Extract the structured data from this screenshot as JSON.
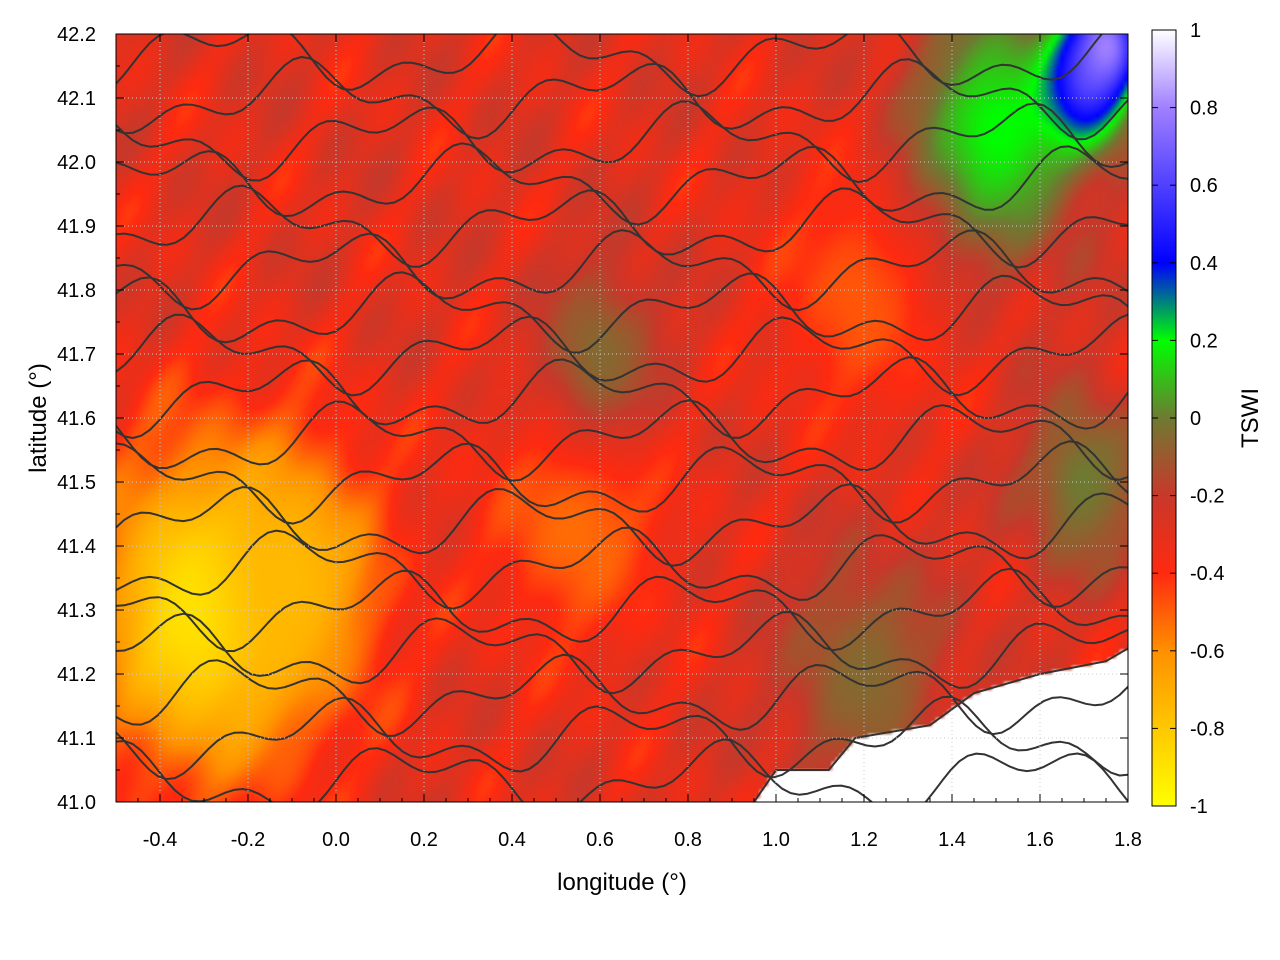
{
  "chart_data": {
    "type": "heatmap",
    "title": "",
    "xlabel": "longitude (°)",
    "ylabel": "latitude (°)",
    "xlim": [
      -0.5,
      1.8
    ],
    "ylim": [
      41.0,
      42.2
    ],
    "xticks": [
      -0.4,
      -0.2,
      0.0,
      0.2,
      0.4,
      0.6,
      0.8,
      1.0,
      1.2,
      1.4,
      1.6,
      1.8
    ],
    "xtick_labels": [
      "-0.4",
      "-0.2",
      "0.0",
      "0.2",
      "0.4",
      "0.6",
      "0.8",
      "1.0",
      "1.2",
      "1.4",
      "1.6",
      "1.8"
    ],
    "yticks": [
      41.0,
      41.1,
      41.2,
      41.3,
      41.4,
      41.5,
      41.6,
      41.7,
      41.8,
      41.9,
      42.0,
      42.1,
      42.2
    ],
    "ytick_labels": [
      "41.0",
      "41.1",
      "41.2",
      "41.3",
      "41.4",
      "41.5",
      "41.6",
      "41.7",
      "41.8",
      "41.9",
      "42.0",
      "42.1",
      "42.2"
    ],
    "grid": true,
    "colorbar": {
      "label": "TSWI",
      "range": [
        -1,
        1
      ],
      "ticks": [
        -1,
        -0.8,
        -0.6,
        -0.4,
        -0.2,
        0,
        0.2,
        0.4,
        0.6,
        0.8,
        1
      ],
      "tick_labels": [
        "-1",
        "-0.8",
        "-0.6",
        "-0.4",
        "-0.2",
        "0",
        "0.2",
        "0.4",
        "0.6",
        "0.8",
        "1"
      ],
      "palette": [
        {
          "value": -1.0,
          "color": "#ffff00"
        },
        {
          "value": -0.6,
          "color": "#ff9000"
        },
        {
          "value": -0.4,
          "color": "#ff2a10"
        },
        {
          "value": -0.2,
          "color": "#c8382a"
        },
        {
          "value": 0.0,
          "color": "#6e7a32"
        },
        {
          "value": 0.2,
          "color": "#00ff00"
        },
        {
          "value": 0.4,
          "color": "#0000ff"
        },
        {
          "value": 0.8,
          "color": "#a080ff"
        },
        {
          "value": 1.0,
          "color": "#ffffff"
        }
      ]
    },
    "field_features": [
      {
        "lon": -0.3,
        "lat": 41.3,
        "tswi": -0.95,
        "extent_deg": 0.25
      },
      {
        "lon": -0.1,
        "lat": 41.35,
        "tswi": -0.75,
        "extent_deg": 0.2
      },
      {
        "lon": 0.55,
        "lat": 41.45,
        "tswi": -0.55,
        "extent_deg": 0.2
      },
      {
        "lon": 1.2,
        "lat": 41.8,
        "tswi": -0.5,
        "extent_deg": 0.2
      },
      {
        "lon": 0.6,
        "lat": 41.7,
        "tswi": -0.05,
        "extent_deg": 0.15
      },
      {
        "lon": 1.2,
        "lat": 41.2,
        "tswi": -0.05,
        "extent_deg": 0.2
      },
      {
        "lon": 1.5,
        "lat": 42.05,
        "tswi": 0.2,
        "extent_deg": 0.2
      },
      {
        "lon": 1.7,
        "lat": 42.12,
        "tswi": 0.5,
        "extent_deg": 0.1
      },
      {
        "lon": 1.75,
        "lat": 42.18,
        "tswi": 0.8,
        "extent_deg": 0.08
      },
      {
        "lon": 1.7,
        "lat": 41.5,
        "tswi": 0.0,
        "extent_deg": 0.15
      }
    ],
    "background_tswi": -0.3,
    "sea_mask_coastline": [
      [
        0.95,
        41.0
      ],
      [
        1.0,
        41.05
      ],
      [
        1.12,
        41.05
      ],
      [
        1.18,
        41.1
      ],
      [
        1.35,
        41.12
      ],
      [
        1.45,
        41.17
      ],
      [
        1.6,
        41.2
      ],
      [
        1.75,
        41.22
      ],
      [
        1.8,
        41.24
      ],
      [
        1.8,
        41.0
      ]
    ]
  }
}
